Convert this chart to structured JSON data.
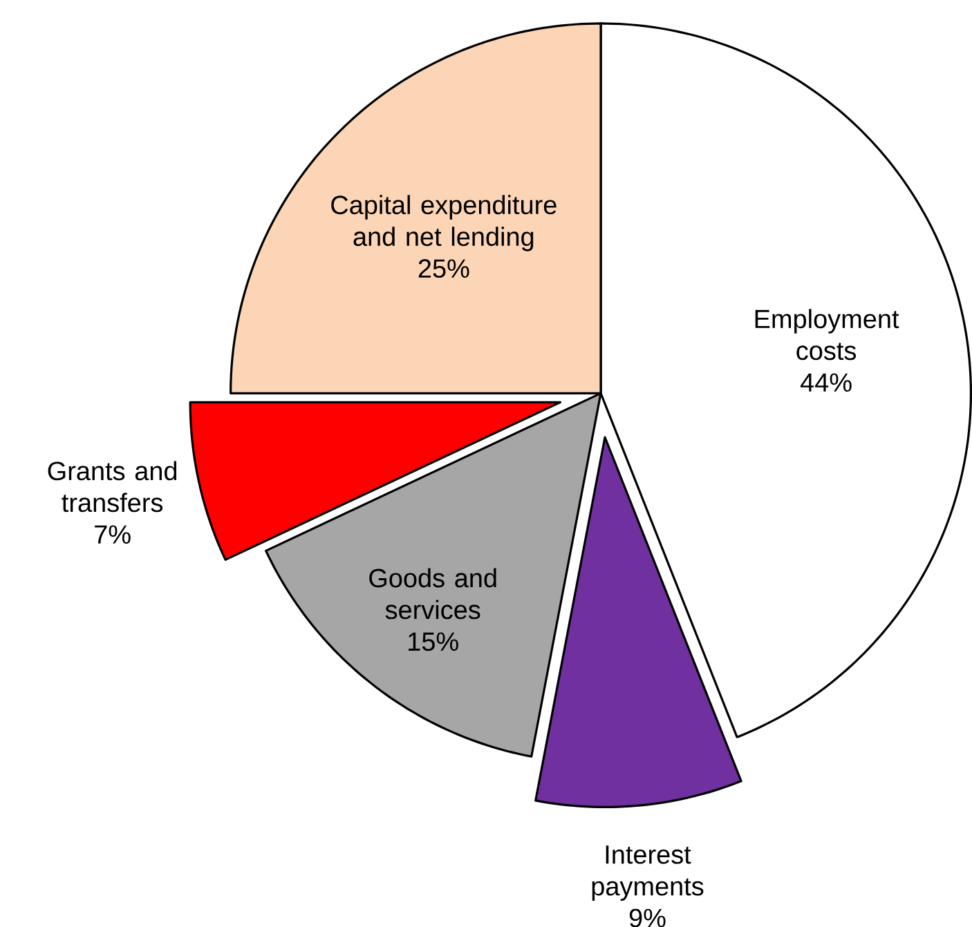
{
  "chart_data": {
    "type": "pie",
    "categories": [
      "Employment costs",
      "Interest payments",
      "Goods and services",
      "Grants and transfers",
      "Capital expenditure and net lending"
    ],
    "values": [
      44,
      9,
      15,
      7,
      25
    ],
    "value_labels": [
      "44%",
      "9%",
      "15%",
      "7%",
      "25%"
    ],
    "colors": [
      "#ffffff",
      "#7030a0",
      "#a6a6a6",
      "#ff0000",
      "#fbd5b5"
    ],
    "legend": false
  }
}
